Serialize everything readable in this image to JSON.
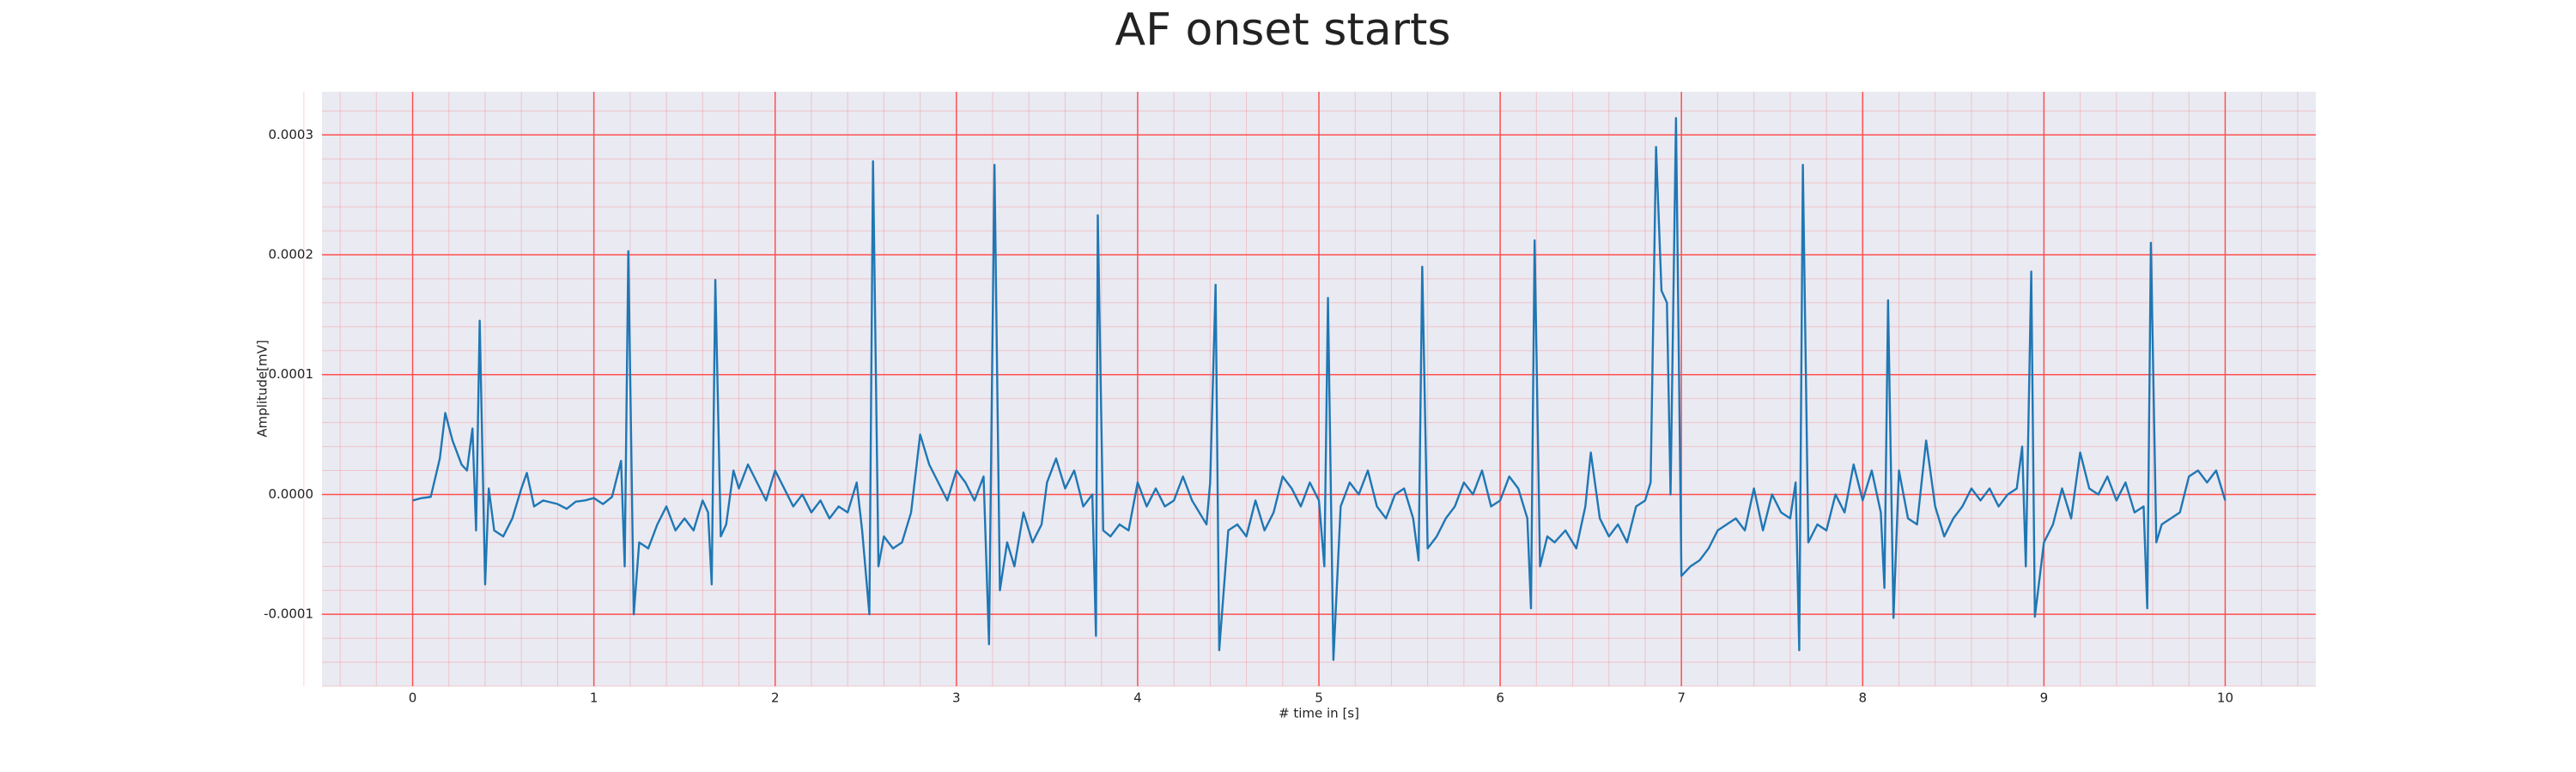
{
  "chart_data": {
    "type": "line",
    "title": "AF onset starts",
    "xlabel": "# time in [s]",
    "ylabel": "Amplitude[mV]",
    "xlim": [
      -0.5,
      10.5
    ],
    "xticks": [
      0,
      1,
      2,
      3,
      4,
      5,
      6,
      7,
      8,
      9,
      10
    ],
    "ylim": [
      -0.00016,
      0.000336
    ],
    "yticks": [
      -0.0001,
      {
        "value": 0,
        "label": "0.0000"
      },
      0.0001,
      0.0002,
      0.0003
    ],
    "grid": true,
    "grid_color": "#ff5050",
    "minor_grid": true,
    "background": "#eaeaf2",
    "series": [
      {
        "color": "#1f77b4",
        "x": [
          0,
          0.05,
          0.1,
          0.15,
          0.18,
          0.22,
          0.27,
          0.3,
          0.33,
          0.35,
          0.37,
          0.4,
          0.42,
          0.45,
          0.5,
          0.55,
          0.6,
          0.63,
          0.67,
          0.72,
          0.8,
          0.85,
          0.9,
          0.95,
          1.0,
          1.05,
          1.1,
          1.15,
          1.17,
          1.19,
          1.22,
          1.25,
          1.3,
          1.35,
          1.4,
          1.45,
          1.5,
          1.55,
          1.6,
          1.63,
          1.65,
          1.67,
          1.7,
          1.73,
          1.77,
          1.8,
          1.85,
          1.9,
          1.95,
          2.0,
          2.05,
          2.1,
          2.15,
          2.2,
          2.25,
          2.3,
          2.35,
          2.4,
          2.45,
          2.48,
          2.52,
          2.54,
          2.57,
          2.6,
          2.65,
          2.7,
          2.75,
          2.8,
          2.85,
          2.9,
          2.95,
          3.0,
          3.05,
          3.1,
          3.15,
          3.18,
          3.21,
          3.24,
          3.28,
          3.32,
          3.37,
          3.42,
          3.47,
          3.5,
          3.55,
          3.6,
          3.65,
          3.7,
          3.75,
          3.77,
          3.78,
          3.81,
          3.85,
          3.9,
          3.95,
          4.0,
          4.05,
          4.1,
          4.15,
          4.2,
          4.25,
          4.3,
          4.38,
          4.4,
          4.43,
          4.45,
          4.5,
          4.55,
          4.6,
          4.65,
          4.7,
          4.75,
          4.8,
          4.85,
          4.9,
          4.95,
          5.0,
          5.03,
          5.05,
          5.08,
          5.12,
          5.17,
          5.22,
          5.27,
          5.32,
          5.37,
          5.42,
          5.47,
          5.52,
          5.55,
          5.57,
          5.6,
          5.65,
          5.7,
          5.75,
          5.8,
          5.85,
          5.9,
          5.95,
          6.0,
          6.05,
          6.1,
          6.15,
          6.17,
          6.19,
          6.22,
          6.26,
          6.3,
          6.36,
          6.42,
          6.47,
          6.5,
          6.55,
          6.6,
          6.65,
          6.7,
          6.75,
          6.8,
          6.83,
          6.86,
          6.89,
          6.92,
          6.94,
          6.97,
          7.0,
          7.05,
          7.1,
          7.15,
          7.2,
          7.3,
          7.35,
          7.4,
          7.45,
          7.5,
          7.55,
          7.6,
          7.63,
          7.65,
          7.67,
          7.7,
          7.75,
          7.8,
          7.85,
          7.9,
          7.95,
          8.0,
          8.05,
          8.1,
          8.12,
          8.14,
          8.17,
          8.2,
          8.25,
          8.3,
          8.35,
          8.4,
          8.45,
          8.5,
          8.55,
          8.6,
          8.65,
          8.7,
          8.75,
          8.8,
          8.85,
          8.88,
          8.9,
          8.93,
          8.95,
          9.0,
          9.05,
          9.1,
          9.15,
          9.2,
          9.25,
          9.3,
          9.35,
          9.4,
          9.45,
          9.5,
          9.55,
          9.57,
          9.59,
          9.62,
          9.65,
          9.7,
          9.75,
          9.8,
          9.85,
          9.9,
          9.95,
          10.0
        ],
        "values": [
          -5e-06,
          -3e-06,
          -2e-06,
          3e-05,
          6.8e-05,
          4.5e-05,
          2.5e-05,
          2e-05,
          5.5e-05,
          -3e-05,
          0.000145,
          -7.5e-05,
          5e-06,
          -3e-05,
          -3.5e-05,
          -2e-05,
          5e-06,
          1.8e-05,
          -1e-05,
          -5e-06,
          -8e-06,
          -1.2e-05,
          -6e-06,
          -5e-06,
          -3e-06,
          -8e-06,
          -2e-06,
          2.8e-05,
          -6e-05,
          0.000203,
          -0.0001,
          -4e-05,
          -4.5e-05,
          -2.5e-05,
          -1e-05,
          -3e-05,
          -2e-05,
          -3e-05,
          -5e-06,
          -1.5e-05,
          -7.5e-05,
          0.000179,
          -3.5e-05,
          -2.5e-05,
          2e-05,
          5e-06,
          2.5e-05,
          1e-05,
          -5e-06,
          2e-05,
          5e-06,
          -1e-05,
          0,
          -1.5e-05,
          -5e-06,
          -2e-05,
          -1e-05,
          -1.5e-05,
          1e-05,
          -3e-05,
          -0.0001,
          0.000278,
          -6e-05,
          -3.5e-05,
          -4.5e-05,
          -4e-05,
          -1.5e-05,
          5e-05,
          2.5e-05,
          1e-05,
          -5e-06,
          2e-05,
          1e-05,
          -5e-06,
          1.5e-05,
          -0.000125,
          0.000275,
          -8e-05,
          -4e-05,
          -6e-05,
          -1.5e-05,
          -4e-05,
          -2.5e-05,
          1e-05,
          3e-05,
          5e-06,
          2e-05,
          -1e-05,
          0,
          -0.000118,
          0.000233,
          -3e-05,
          -3.5e-05,
          -2.5e-05,
          -3e-05,
          1e-05,
          -1e-05,
          5e-06,
          -1e-05,
          -5e-06,
          1.5e-05,
          -5e-06,
          -2.5e-05,
          1e-05,
          0.000175,
          -0.00013,
          -3e-05,
          -2.5e-05,
          -3.5e-05,
          -5e-06,
          -3e-05,
          -1.5e-05,
          1.5e-05,
          5e-06,
          -1e-05,
          1e-05,
          -5e-06,
          -6e-05,
          0.000164,
          -0.000138,
          -1e-05,
          1e-05,
          0,
          2e-05,
          -1e-05,
          -2e-05,
          0,
          5e-06,
          -2e-05,
          -5.5e-05,
          0.00019,
          -4.5e-05,
          -3.5e-05,
          -2e-05,
          -1e-05,
          1e-05,
          0,
          2e-05,
          -1e-05,
          -5e-06,
          1.5e-05,
          5e-06,
          -2e-05,
          -9.5e-05,
          0.000212,
          -6e-05,
          -3.5e-05,
          -4e-05,
          -3e-05,
          -4.5e-05,
          -1e-05,
          3.5e-05,
          -2e-05,
          -3.5e-05,
          -2.5e-05,
          -4e-05,
          -1e-05,
          -5e-06,
          1e-05,
          0.00029,
          0.00017,
          0.00016,
          0,
          0.000314,
          -6.8e-05,
          -6e-05,
          -5.5e-05,
          -4.5e-05,
          -3e-05,
          -2e-05,
          -3e-05,
          5e-06,
          -3e-05,
          0,
          -1.5e-05,
          -2e-05,
          1e-05,
          -0.00013,
          0.000275,
          -4e-05,
          -2.5e-05,
          -3e-05,
          0,
          -1.5e-05,
          2.5e-05,
          -5e-06,
          2e-05,
          -1.5e-05,
          -7.8e-05,
          0.000162,
          -0.000103,
          2e-05,
          -2e-05,
          -2.5e-05,
          4.5e-05,
          -1e-05,
          -3.5e-05,
          -2e-05,
          -1e-05,
          5e-06,
          -5e-06,
          5e-06,
          -1e-05,
          0,
          5e-06,
          4e-05,
          -6e-05,
          0.000186,
          -0.000102,
          -4e-05,
          -2.5e-05,
          5e-06,
          -2e-05,
          3.5e-05,
          5e-06,
          0,
          1.5e-05,
          -5e-06,
          1e-05,
          -1.5e-05,
          -1e-05,
          -9.5e-05,
          0.00021,
          -4e-05,
          -2.5e-05,
          -2e-05,
          -1.5e-05,
          1.5e-05,
          2e-05,
          1e-05,
          2e-05,
          -5e-06
        ]
      }
    ]
  }
}
